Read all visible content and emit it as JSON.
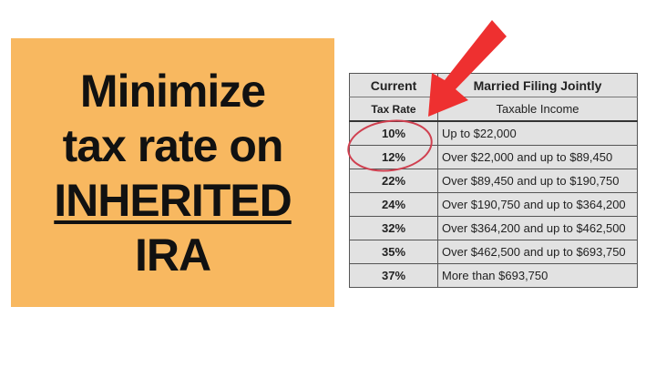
{
  "promo": {
    "lines": [
      "Minimize",
      "tax rate on",
      "INHERITED",
      "IRA"
    ],
    "background_color": "#f8b860"
  },
  "table": {
    "header": {
      "col1_line1": "Current",
      "col1_line2": "Tax Rate",
      "col2_line1": "Married Filing Jointly",
      "col2_line2": "Taxable Income"
    },
    "rows": [
      {
        "rate": "10%",
        "income": "Up to $22,000"
      },
      {
        "rate": "12%",
        "income": "Over $22,000 and up to $89,450"
      },
      {
        "rate": "22%",
        "income": "Over $89,450 and up to $190,750"
      },
      {
        "rate": "24%",
        "income": "Over $190,750 and up to $364,200"
      },
      {
        "rate": "32%",
        "income": "Over $364,200 and up to $462,500"
      },
      {
        "rate": "35%",
        "income": "Over $462,500 and up to $693,750"
      },
      {
        "rate": "37%",
        "income": "More than $693,750"
      }
    ],
    "highlighted_rates": [
      "10%",
      "12%"
    ]
  },
  "colors": {
    "arrow": "#ee3030",
    "circle": "#d04050",
    "table_bg": "#e2e2e2"
  }
}
